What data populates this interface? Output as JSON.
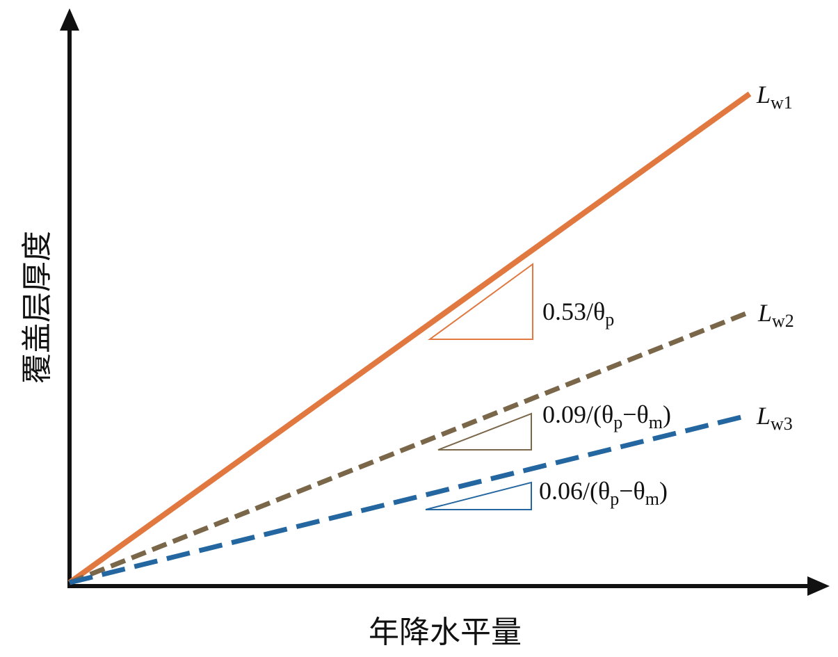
{
  "y_axis_label": "覆盖层厚度",
  "x_axis_label": "年降水平量",
  "lines": [
    {
      "name": "L",
      "subscript": "w1",
      "slope_label": [
        "0.53/θ",
        "p"
      ]
    },
    {
      "name": "L",
      "subscript": "w2",
      "slope_label": [
        "0.09/(θ",
        "p",
        "−θ",
        "m",
        ")"
      ]
    },
    {
      "name": "L",
      "subscript": "w3",
      "slope_label": [
        "0.06/(θ",
        "p",
        "−θ",
        "m",
        ")"
      ]
    }
  ]
}
